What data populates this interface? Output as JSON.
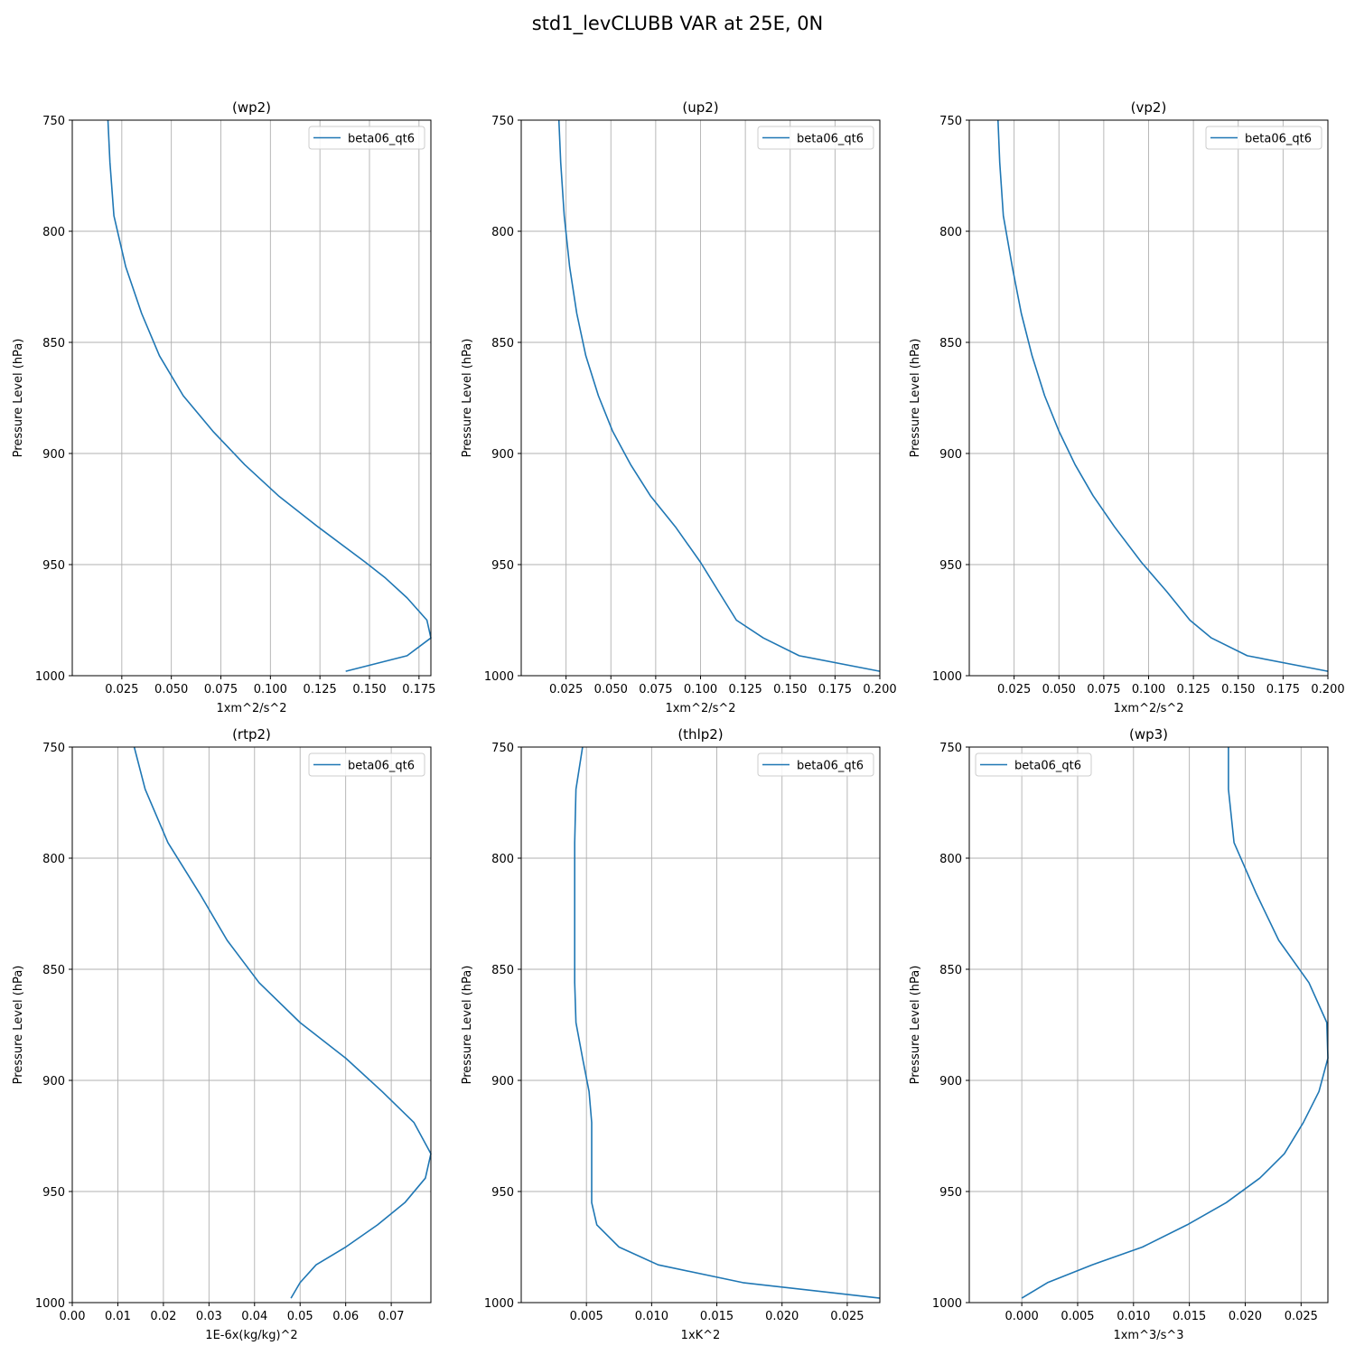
{
  "figure": {
    "title": "std1_levCLUBB VAR at 25E, 0N"
  },
  "colors": {
    "series": "#1f77b4",
    "grid": "#b0b0b0",
    "axis": "#000000",
    "legend_border": "#cccccc"
  },
  "chart_data": [
    {
      "type": "line",
      "title": "(wp2)",
      "xlabel": "1xm^2/s^2",
      "ylabel": "Pressure Level (hPa)",
      "xlim": [
        0.0,
        0.181
      ],
      "ylim": [
        1000,
        750
      ],
      "y_inverted": true,
      "xticks": [
        0.025,
        0.05,
        0.075,
        0.1,
        0.125,
        0.15,
        0.175
      ],
      "xtick_labels": [
        "0.025",
        "0.050",
        "0.075",
        "0.100",
        "0.125",
        "0.150",
        "0.175"
      ],
      "yticks": [
        750,
        800,
        850,
        900,
        950,
        1000
      ],
      "grid": true,
      "legend_position": "upper right",
      "series": [
        {
          "name": "beta06_qt6",
          "x": [
            0.018,
            0.019,
            0.021,
            0.027,
            0.035,
            0.044,
            0.056,
            0.071,
            0.087,
            0.104,
            0.124,
            0.148,
            0.158,
            0.169,
            0.179,
            0.181,
            0.169,
            0.138
          ],
          "y": [
            750,
            769,
            793,
            816,
            837,
            856,
            874,
            890,
            905,
            919,
            933,
            949,
            956,
            965,
            975,
            983,
            991,
            998
          ]
        }
      ]
    },
    {
      "type": "line",
      "title": "(up2)",
      "xlabel": "1xm^2/s^2",
      "ylabel": "Pressure Level (hPa)",
      "xlim": [
        0.0,
        0.2
      ],
      "ylim": [
        1000,
        750
      ],
      "y_inverted": true,
      "xticks": [
        0.025,
        0.05,
        0.075,
        0.1,
        0.125,
        0.15,
        0.175,
        0.2
      ],
      "xtick_labels": [
        "0.025",
        "0.050",
        "0.075",
        "0.100",
        "0.125",
        "0.150",
        "0.175",
        "0.200"
      ],
      "yticks": [
        750,
        800,
        850,
        900,
        950,
        1000
      ],
      "grid": true,
      "legend_position": "upper right",
      "series": [
        {
          "name": "beta06_qt6",
          "x": [
            0.021,
            0.022,
            0.024,
            0.027,
            0.031,
            0.036,
            0.043,
            0.051,
            0.061,
            0.072,
            0.086,
            0.1,
            0.11,
            0.12,
            0.135,
            0.155,
            0.2
          ],
          "y": [
            750,
            769,
            793,
            816,
            837,
            856,
            874,
            890,
            905,
            919,
            933,
            949,
            962,
            975,
            983,
            991,
            998
          ]
        }
      ]
    },
    {
      "type": "line",
      "title": "(vp2)",
      "xlabel": "1xm^2/s^2",
      "ylabel": "Pressure Level (hPa)",
      "xlim": [
        0.0,
        0.2
      ],
      "ylim": [
        1000,
        750
      ],
      "y_inverted": true,
      "xticks": [
        0.025,
        0.05,
        0.075,
        0.1,
        0.125,
        0.15,
        0.175,
        0.2
      ],
      "xtick_labels": [
        "0.025",
        "0.050",
        "0.075",
        "0.100",
        "0.125",
        "0.150",
        "0.175",
        "0.200"
      ],
      "yticks": [
        750,
        800,
        850,
        900,
        950,
        1000
      ],
      "grid": true,
      "legend_position": "upper right",
      "series": [
        {
          "name": "beta06_qt6",
          "x": [
            0.016,
            0.017,
            0.019,
            0.024,
            0.029,
            0.035,
            0.042,
            0.05,
            0.059,
            0.069,
            0.081,
            0.096,
            0.11,
            0.123,
            0.135,
            0.155,
            0.2
          ],
          "y": [
            750,
            769,
            793,
            816,
            837,
            856,
            874,
            890,
            905,
            919,
            933,
            949,
            962,
            975,
            983,
            991,
            998
          ]
        }
      ]
    },
    {
      "type": "line",
      "title": "(rtp2)",
      "xlabel": "1E-6x(kg/kg)^2",
      "ylabel": "Pressure Level (hPa)",
      "xlim": [
        0.0,
        0.0787
      ],
      "ylim": [
        1000,
        750
      ],
      "y_inverted": true,
      "xticks": [
        0.0,
        0.01,
        0.02,
        0.03,
        0.04,
        0.05,
        0.06,
        0.07
      ],
      "xtick_labels": [
        "0.00",
        "0.01",
        "0.02",
        "0.03",
        "0.04",
        "0.05",
        "0.06",
        "0.07"
      ],
      "yticks": [
        750,
        800,
        850,
        900,
        950,
        1000
      ],
      "grid": true,
      "legend_position": "upper right",
      "series": [
        {
          "name": "beta06_qt6",
          "x": [
            0.0136,
            0.016,
            0.021,
            0.028,
            0.034,
            0.041,
            0.05,
            0.06,
            0.068,
            0.075,
            0.0787,
            0.0775,
            0.073,
            0.067,
            0.06,
            0.0535,
            0.05,
            0.048
          ],
          "y": [
            750,
            769,
            793,
            816,
            837,
            856,
            874,
            890,
            905,
            919,
            933,
            944,
            955,
            965,
            975,
            983,
            991,
            998
          ]
        }
      ]
    },
    {
      "type": "line",
      "title": "(thlp2)",
      "xlabel": "1xK^2",
      "ylabel": "Pressure Level (hPa)",
      "xlim": [
        0.0,
        0.0275
      ],
      "ylim": [
        1000,
        750
      ],
      "y_inverted": true,
      "xticks": [
        0.005,
        0.01,
        0.015,
        0.02,
        0.025
      ],
      "xtick_labels": [
        "0.005",
        "0.010",
        "0.015",
        "0.020",
        "0.025"
      ],
      "yticks": [
        750,
        800,
        850,
        900,
        950,
        1000
      ],
      "grid": true,
      "legend_position": "upper right",
      "series": [
        {
          "name": "beta06_qt6",
          "x": [
            0.0047,
            0.0042,
            0.0041,
            0.0041,
            0.0041,
            0.0041,
            0.0042,
            0.0047,
            0.0052,
            0.0054,
            0.0054,
            0.0054,
            0.0054,
            0.0058,
            0.0075,
            0.0105,
            0.017,
            0.0275
          ],
          "y": [
            750,
            769,
            793,
            816,
            837,
            856,
            874,
            890,
            905,
            919,
            933,
            944,
            955,
            965,
            975,
            983,
            991,
            998
          ]
        }
      ]
    },
    {
      "type": "line",
      "title": "(wp3)",
      "xlabel": "1xm^3/s^3",
      "ylabel": "Pressure Level (hPa)",
      "xlim": [
        -0.0047,
        0.0274
      ],
      "ylim": [
        1000,
        750
      ],
      "y_inverted": true,
      "xticks": [
        0.0,
        0.005,
        0.01,
        0.015,
        0.02,
        0.025
      ],
      "xtick_labels": [
        "0.000",
        "0.005",
        "0.010",
        "0.015",
        "0.020",
        "0.025"
      ],
      "yticks": [
        750,
        800,
        850,
        900,
        950,
        1000
      ],
      "grid": true,
      "legend_position": "upper left",
      "series": [
        {
          "name": "beta06_qt6",
          "x": [
            0.0185,
            0.0185,
            0.019,
            0.021,
            0.023,
            0.0257,
            0.0273,
            0.0274,
            0.0266,
            0.0252,
            0.0235,
            0.0213,
            0.0183,
            0.0148,
            0.0108,
            0.0063,
            0.0023,
            0.0
          ],
          "y": [
            750,
            769,
            793,
            816,
            837,
            856,
            874,
            890,
            905,
            919,
            933,
            944,
            955,
            965,
            975,
            983,
            991,
            998
          ]
        }
      ]
    }
  ]
}
